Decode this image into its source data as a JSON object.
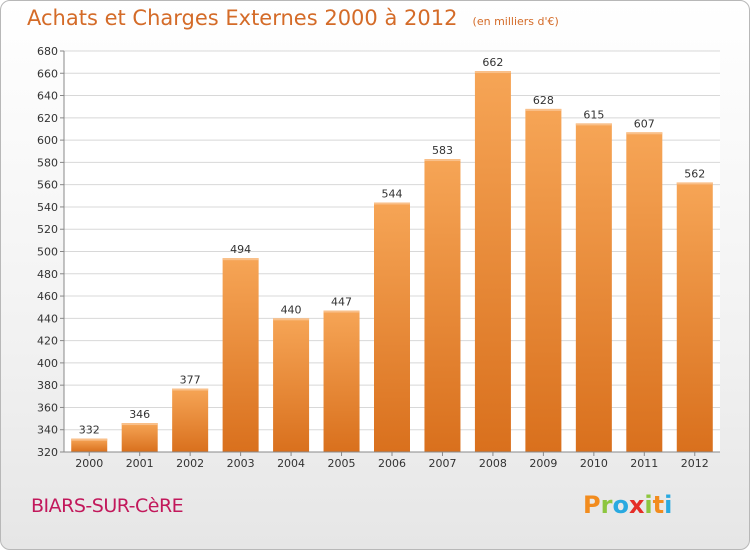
{
  "title": "Achats et Charges Externes 2000 à 2012",
  "subtitle": "(en milliers d'€)",
  "commune": "BIARS-SUR-CèRE",
  "logo": {
    "text": "Proxiti",
    "letters": [
      {
        "char": "P",
        "color": "#f28c1e"
      },
      {
        "char": "r",
        "color": "#8dc63f"
      },
      {
        "char": "o",
        "color": "#29a9e0"
      },
      {
        "char": "x",
        "color": "#e52d27"
      },
      {
        "char": "i",
        "color": "#8dc63f"
      },
      {
        "char": "t",
        "color": "#f28c1e"
      },
      {
        "char": "i",
        "color": "#29a9e0"
      }
    ]
  },
  "chart_data": {
    "type": "bar",
    "categories": [
      "2000",
      "2001",
      "2002",
      "2003",
      "2004",
      "2005",
      "2006",
      "2007",
      "2008",
      "2009",
      "2010",
      "2011",
      "2012"
    ],
    "values": [
      332,
      346,
      377,
      494,
      440,
      447,
      544,
      583,
      662,
      628,
      615,
      607,
      562
    ],
    "title": "Achats et Charges Externes 2000 à 2012",
    "xlabel": "",
    "ylabel": "",
    "ylim": [
      320,
      680
    ],
    "yticks": [
      320,
      340,
      360,
      380,
      400,
      420,
      440,
      460,
      480,
      500,
      520,
      540,
      560,
      580,
      600,
      620,
      640,
      660,
      680
    ],
    "grid": true,
    "data_labels": true,
    "bar_color": "#ef8a2e",
    "bar_color_light": "#f6a556",
    "bar_color_dark": "#d9701d"
  }
}
